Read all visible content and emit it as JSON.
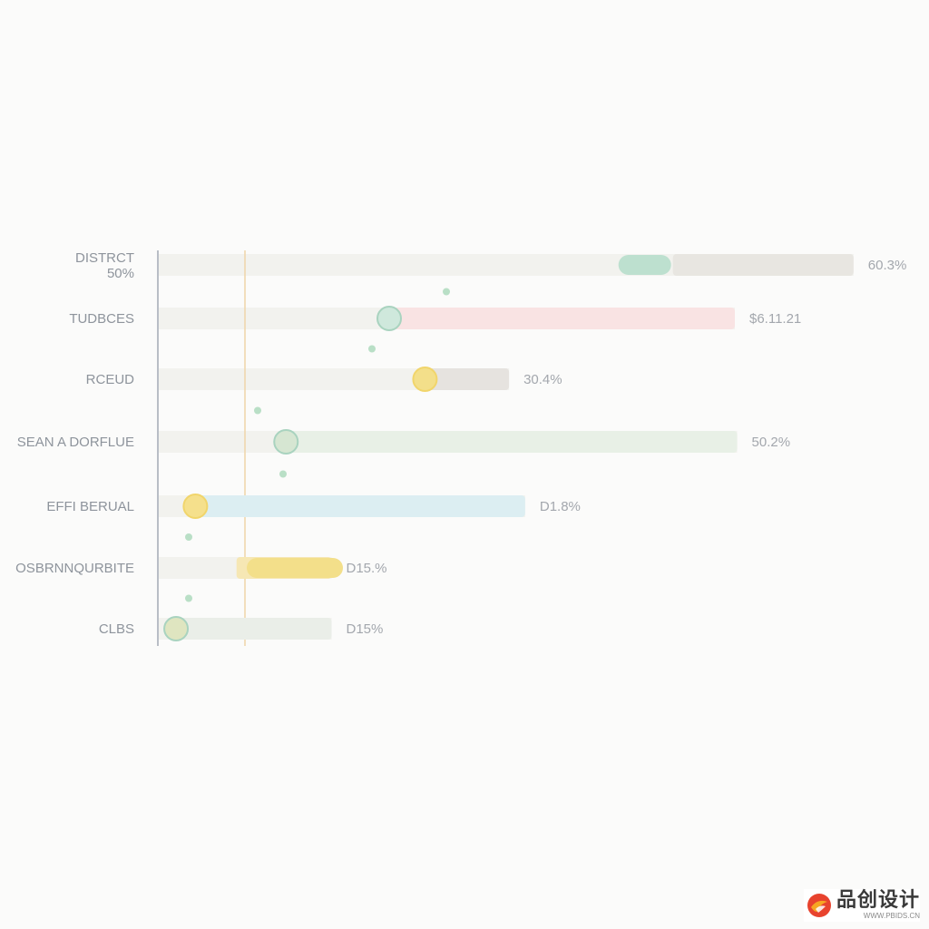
{
  "chart_data": {
    "type": "bar",
    "orientation": "horizontal",
    "categories": [
      "DISTRCT\n50%",
      "TUDBCES",
      "RCEUD",
      "SEAN A DORFLUE",
      "EFFI BERUAL",
      "OSBRNNQURBITE",
      "CLBS"
    ],
    "value_labels": [
      "60.3%",
      "$6.11.21",
      "30.4%",
      "50.2%",
      "D1.8%",
      "D15.%",
      "D15%"
    ],
    "values": [
      60.3,
      50.0,
      30.4,
      50.2,
      31.8,
      15.0,
      15.0
    ],
    "track_colors": [
      "#e8e6e1",
      "#f9e3e3",
      "#e6e3df",
      "#e8f0e6",
      "#dceef2",
      "#f6e7b4",
      "#eaeee8"
    ],
    "marker_colors": [
      "#bde0cf",
      "#cfe8dc",
      "#f3df8a",
      "#d6e6d2",
      "#f5e08c",
      "#f3df8a",
      "#dfe5c0"
    ],
    "legend": "none",
    "grid": false,
    "reference_line_color": "#f0d5a8"
  },
  "watermark": {
    "main": "品创设计",
    "sub": "WWW.PBIDS.CN"
  }
}
